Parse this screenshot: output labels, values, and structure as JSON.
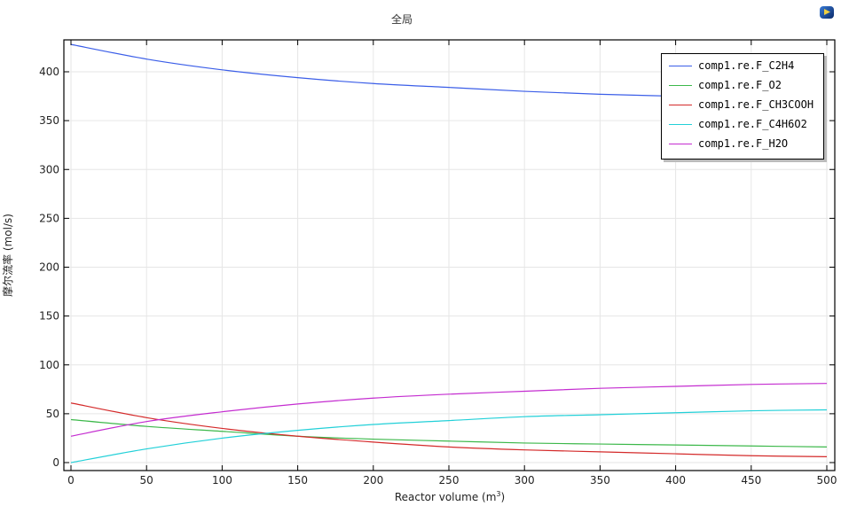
{
  "chart_data": {
    "type": "line",
    "title": "全局",
    "xlabel": "Reactor volume (m³)",
    "xlabel_base": "Reactor volume (m",
    "xlabel_sup": "3",
    "xlabel_end": ")",
    "ylabel": "摩尔流率 (mol/s)",
    "xlim": [
      0,
      500
    ],
    "ylim": [
      -4,
      436
    ],
    "xticks": [
      0,
      50,
      100,
      150,
      200,
      250,
      300,
      350,
      400,
      450,
      500
    ],
    "yticks": [
      0,
      50,
      100,
      150,
      200,
      250,
      300,
      350,
      400
    ],
    "grid": true,
    "legend_position": "top-right",
    "x": [
      0,
      50,
      100,
      150,
      200,
      250,
      300,
      350,
      400,
      450,
      500
    ],
    "series": [
      {
        "name": "comp1.re.F_C2H4",
        "color": "#3b5ee8",
        "values": [
          428,
          413,
          402,
          394,
          388,
          384,
          380,
          377,
          375,
          373,
          372
        ]
      },
      {
        "name": "comp1.re.F_O2",
        "color": "#3cb84a",
        "values": [
          44,
          37,
          32,
          27,
          24,
          22,
          20,
          19,
          18,
          17,
          16
        ]
      },
      {
        "name": "comp1.re.F_CH3COOH",
        "color": "#d42a2a",
        "values": [
          61,
          46,
          35,
          27,
          21,
          16,
          13,
          11,
          9,
          7,
          6
        ]
      },
      {
        "name": "comp1.re.F_C4H6O2",
        "color": "#22d0d8",
        "values": [
          0,
          14,
          25,
          33,
          39,
          43,
          47,
          49,
          51,
          53,
          54
        ]
      },
      {
        "name": "comp1.re.F_H2O",
        "color": "#c42cd0",
        "values": [
          27,
          42,
          52,
          60,
          66,
          70,
          73,
          76,
          78,
          80,
          81
        ]
      }
    ]
  }
}
